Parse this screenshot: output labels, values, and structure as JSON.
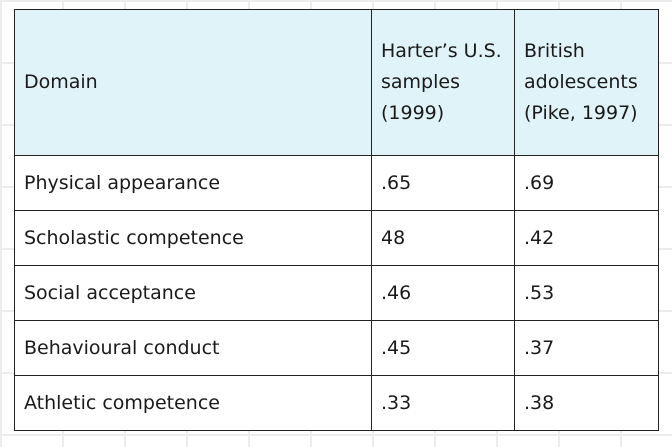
{
  "table": {
    "header": [
      "Domain",
      "Harter’s U.S. samples (1999)",
      "British adolescents (Pike, 1997)"
    ],
    "rows": [
      [
        "Physical appearance",
        ".65",
        ".69"
      ],
      [
        "Scholastic competence",
        "48",
        ".42"
      ],
      [
        "Social acceptance",
        ".46",
        ".53"
      ],
      [
        "Behavioural conduct",
        ".45",
        ".37"
      ],
      [
        "Athletic competence",
        ".33",
        ".38"
      ]
    ]
  }
}
